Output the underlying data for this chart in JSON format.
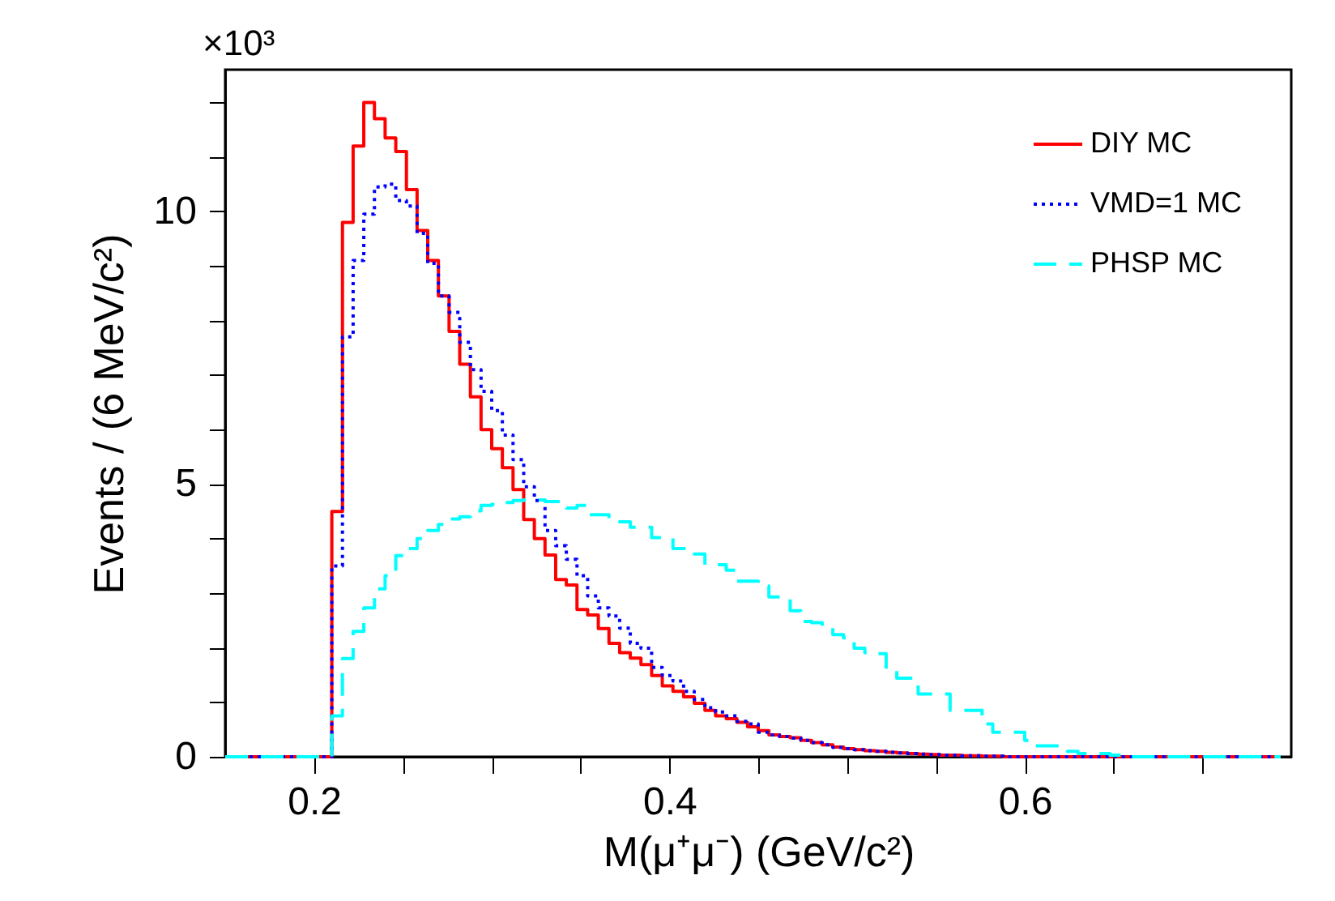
{
  "chart_data": {
    "type": "step",
    "xlabel": "M(μ⁺μ⁻) (GeV/c²)",
    "ylabel": "Events / (6 MeV/c²)",
    "annotations": [
      "×10³"
    ],
    "x": [
      0.15,
      0.156,
      0.162,
      0.168,
      0.174,
      0.18,
      0.186,
      0.192,
      0.198,
      0.204,
      0.21,
      0.216,
      0.222,
      0.228,
      0.234,
      0.24,
      0.246,
      0.252,
      0.258,
      0.264,
      0.27,
      0.276,
      0.282,
      0.288,
      0.294,
      0.3,
      0.306,
      0.312,
      0.318,
      0.324,
      0.33,
      0.336,
      0.342,
      0.348,
      0.354,
      0.36,
      0.366,
      0.372,
      0.378,
      0.384,
      0.39,
      0.396,
      0.402,
      0.408,
      0.414,
      0.42,
      0.426,
      0.432,
      0.438,
      0.444,
      0.45,
      0.456,
      0.462,
      0.468,
      0.474,
      0.48,
      0.486,
      0.492,
      0.498,
      0.504,
      0.51,
      0.516,
      0.522,
      0.528,
      0.534,
      0.54,
      0.546,
      0.552,
      0.558,
      0.564,
      0.57,
      0.576,
      0.582,
      0.588,
      0.594,
      0.6,
      0.606,
      0.612,
      0.618,
      0.624,
      0.63,
      0.636,
      0.642,
      0.648,
      0.654,
      0.66,
      0.666,
      0.672,
      0.678,
      0.684,
      0.69,
      0.696,
      0.702,
      0.708,
      0.714,
      0.72,
      0.726,
      0.732,
      0.738,
      0.744
    ],
    "series": [
      {
        "name": "DIY MC",
        "color": "#ff0000",
        "line_style": "solid",
        "values": [
          0,
          0,
          0,
          0,
          0,
          0,
          0,
          0,
          0,
          0,
          4.5,
          9.8,
          11.2,
          12.0,
          11.7,
          11.35,
          11.1,
          10.4,
          9.65,
          9.1,
          8.45,
          7.8,
          7.2,
          6.6,
          6.0,
          5.65,
          5.3,
          4.9,
          4.35,
          4.0,
          3.7,
          3.25,
          3.15,
          2.7,
          2.6,
          2.35,
          2.08,
          1.91,
          1.81,
          1.69,
          1.49,
          1.3,
          1.2,
          1.1,
          0.98,
          0.85,
          0.75,
          0.7,
          0.63,
          0.55,
          0.48,
          0.4,
          0.37,
          0.35,
          0.3,
          0.26,
          0.22,
          0.18,
          0.15,
          0.13,
          0.11,
          0.1,
          0.08,
          0.07,
          0.06,
          0.05,
          0.04,
          0.03,
          0.03,
          0.02,
          0.02,
          0.01,
          0.01,
          0,
          0,
          0,
          0,
          0,
          0,
          0,
          0,
          0,
          0,
          0,
          0,
          0,
          0,
          0,
          0,
          0,
          0,
          0,
          0,
          0,
          0,
          0,
          0,
          0,
          0,
          0
        ]
      },
      {
        "name": "VMD=1 MC",
        "color": "#0000ff",
        "line_style": "dotted",
        "values": [
          0,
          0,
          0,
          0,
          0,
          0,
          0,
          0,
          0,
          0,
          3.5,
          7.7,
          9.1,
          9.95,
          10.45,
          10.5,
          10.2,
          10.1,
          9.6,
          9.05,
          8.45,
          8.15,
          7.6,
          7.1,
          6.7,
          6.35,
          5.9,
          5.45,
          4.95,
          4.7,
          4.15,
          3.87,
          3.62,
          3.32,
          2.95,
          2.73,
          2.58,
          2.36,
          2.08,
          1.99,
          1.64,
          1.49,
          1.39,
          1.2,
          1.05,
          0.9,
          0.82,
          0.75,
          0.65,
          0.6,
          0.45,
          0.4,
          0.37,
          0.34,
          0.3,
          0.26,
          0.22,
          0.17,
          0.15,
          0.13,
          0.11,
          0.1,
          0.08,
          0.07,
          0.06,
          0.05,
          0.04,
          0.03,
          0.03,
          0.02,
          0.02,
          0.01,
          0.01,
          0,
          0,
          0,
          0,
          0,
          0,
          0,
          0,
          0,
          0,
          0,
          0,
          0,
          0,
          0,
          0,
          0,
          0,
          0,
          0,
          0,
          0,
          0,
          0,
          0,
          0,
          0
        ]
      },
      {
        "name": "PHSP MC",
        "color": "#00ffff",
        "line_style": "dashed",
        "values": [
          0,
          0,
          0,
          0,
          0,
          0,
          0,
          0,
          0,
          0,
          0.75,
          1.8,
          2.3,
          2.73,
          3.08,
          3.32,
          3.69,
          3.82,
          4.0,
          4.15,
          4.26,
          4.36,
          4.4,
          4.51,
          4.61,
          4.63,
          4.66,
          4.7,
          4.71,
          4.71,
          4.68,
          4.68,
          4.56,
          4.61,
          4.44,
          4.44,
          4.31,
          4.31,
          4.21,
          4.21,
          4.02,
          4.02,
          3.82,
          3.82,
          3.72,
          3.52,
          3.52,
          3.42,
          3.22,
          3.22,
          3.13,
          2.93,
          2.93,
          2.68,
          2.48,
          2.46,
          2.38,
          2.24,
          2.18,
          1.99,
          1.91,
          1.89,
          1.6,
          1.44,
          1.44,
          1.15,
          1.15,
          1.15,
          0.85,
          0.85,
          0.85,
          0.6,
          0.45,
          0.45,
          0.45,
          0.3,
          0.2,
          0.2,
          0.2,
          0.1,
          0.06,
          0.06,
          0.06,
          0.03,
          0,
          0,
          0,
          0,
          0,
          0,
          0,
          0,
          0,
          0,
          0,
          0,
          0,
          0,
          0,
          0
        ]
      }
    ],
    "xlim": [
      0.15,
      0.75
    ],
    "xticks": [
      0.2,
      {
        "value": 0.25,
        "label": null
      },
      {
        "value": 0.3,
        "label": null
      },
      {
        "value": 0.35,
        "label": null
      },
      0.4,
      {
        "value": 0.45,
        "label": null
      },
      {
        "value": 0.5,
        "label": null
      },
      {
        "value": 0.55,
        "label": null
      },
      0.6,
      {
        "value": 0.65,
        "label": null
      },
      {
        "value": 0.7,
        "label": null
      }
    ],
    "ylim": [
      0,
      12.6
    ],
    "yticks": [
      0,
      {
        "value": 1,
        "label": null
      },
      {
        "value": 2,
        "label": null
      },
      {
        "value": 3,
        "label": null
      },
      {
        "value": 4,
        "label": null
      },
      5,
      {
        "value": 6,
        "label": null
      },
      {
        "value": 7,
        "label": null
      },
      {
        "value": 8,
        "label": null
      },
      {
        "value": 9,
        "label": null
      },
      10,
      {
        "value": 11,
        "label": null
      },
      {
        "value": 12,
        "label": null
      }
    ],
    "grid": false,
    "legend": "top right"
  }
}
